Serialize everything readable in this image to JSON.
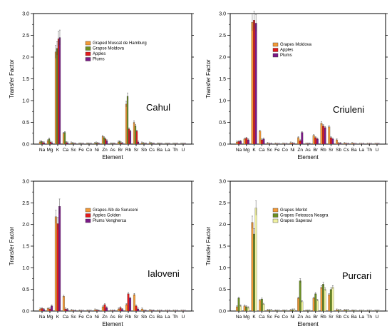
{
  "chart_data": [
    {
      "type": "bar",
      "panel_label": "Cahul",
      "xlabel": "Element",
      "ylabel": "Transfer Factor",
      "ylim": [
        0,
        3.0
      ],
      "yticks": [
        "0.0",
        "0.5",
        "1.0",
        "1.5",
        "2.0",
        "2.5",
        "3.0"
      ],
      "categories": [
        "Na",
        "Mg",
        "K",
        "Ca",
        "Sc",
        "Fe",
        "Co",
        "Ni",
        "Zn",
        "As",
        "Br",
        "Rb",
        "Sr",
        "Sb",
        "Cs",
        "Ba",
        "La",
        "Th",
        "U"
      ],
      "legend_position": "top-center",
      "series": [
        {
          "name": "Graped Muscat de Hamburg",
          "color": "#f39a38",
          "values": [
            0.05,
            0.08,
            2.12,
            0.25,
            0.03,
            0.01,
            0.01,
            0.02,
            0.18,
            0.01,
            0.05,
            0.92,
            0.5,
            0.03,
            0.03,
            0.01,
            0.005,
            0.005,
            0.005
          ]
        },
        {
          "name": "Grapse Moldova",
          "color": "#6b8e23",
          "values": [
            0.06,
            0.12,
            2.2,
            0.27,
            0.02,
            0.01,
            0.01,
            0.03,
            0.15,
            0.01,
            0.06,
            1.1,
            0.42,
            0.02,
            0.02,
            0.01,
            0.005,
            0.005,
            0.005
          ]
        },
        {
          "name": "Apples",
          "color": "#e31a1c",
          "values": [
            0.04,
            0.05,
            2.42,
            0.04,
            0.01,
            0.005,
            0.005,
            0.02,
            0.12,
            0.01,
            0.03,
            0.35,
            0.3,
            0.01,
            0.01,
            0.005,
            0.005,
            0.005,
            0.005
          ]
        },
        {
          "name": "Plums",
          "color": "#7a1a86",
          "values": [
            0.03,
            0.03,
            2.45,
            0.03,
            0.01,
            0.005,
            0.005,
            0.01,
            0.08,
            0.01,
            0.02,
            0.3,
            0.05,
            0.01,
            0.01,
            0.005,
            0.005,
            0.005,
            0.005
          ]
        }
      ]
    },
    {
      "type": "bar",
      "panel_label": "Criuleni",
      "xlabel": "Element",
      "ylabel": "Transfer Factor",
      "ylim": [
        0,
        3.0
      ],
      "yticks": [
        "0.0",
        "0.5",
        "1.0",
        "1.5",
        "2.0",
        "2.5",
        "3.0"
      ],
      "categories": [
        "Na",
        "Mg",
        "K",
        "Ca",
        "Sc",
        "Fe",
        "Co",
        "Ni",
        "Zn",
        "As",
        "Br",
        "Rb",
        "Sr",
        "Sb",
        "Cs",
        "Ba",
        "La",
        "Th",
        "U"
      ],
      "legend_position": "top-center",
      "series": [
        {
          "name": "Grapes Moldova",
          "color": "#f39a38",
          "values": [
            0.05,
            0.12,
            2.8,
            0.3,
            0.02,
            0.01,
            0.01,
            0.03,
            0.15,
            0.01,
            0.2,
            0.48,
            0.4,
            0.1,
            0.02,
            0.02,
            0.005,
            0.005,
            0.005
          ]
        },
        {
          "name": "Apples",
          "color": "#e31a1c",
          "values": [
            0.06,
            0.14,
            2.85,
            0.1,
            0.01,
            0.005,
            0.005,
            0.02,
            0.08,
            0.01,
            0.15,
            0.42,
            0.15,
            0.02,
            0.01,
            0.01,
            0.005,
            0.005,
            0.005
          ]
        },
        {
          "name": "Plums",
          "color": "#7a1a86",
          "values": [
            0.07,
            0.1,
            2.78,
            0.12,
            0.01,
            0.005,
            0.005,
            0.01,
            0.27,
            0.01,
            0.12,
            0.38,
            0.12,
            0.02,
            0.01,
            0.005,
            0.005,
            0.005,
            0.005
          ]
        }
      ]
    },
    {
      "type": "bar",
      "panel_label": "Ialoveni",
      "xlabel": "Element",
      "ylabel": "Transfer Factor",
      "ylim": [
        0,
        3.0
      ],
      "yticks": [
        "0.0",
        "0.5",
        "1.0",
        "1.5",
        "2.0",
        "2.5",
        "3.0"
      ],
      "categories": [
        "Na",
        "Mg",
        "K",
        "Ca",
        "Sc",
        "Fe",
        "Co",
        "Ni",
        "Zn",
        "As",
        "Br",
        "Rb",
        "Sr",
        "Sb",
        "Cs",
        "Ba",
        "La",
        "Th",
        "U"
      ],
      "legend_position": "top-center",
      "series": [
        {
          "name": "Grapes Alb de Suruceni",
          "color": "#f39a38",
          "values": [
            0.05,
            0.06,
            2.18,
            0.34,
            0.02,
            0.01,
            0.01,
            0.03,
            0.1,
            0.01,
            0.05,
            0.15,
            0.38,
            0.05,
            0.02,
            0.01,
            0.005,
            0.005,
            0.005
          ]
        },
        {
          "name": "Apples Golden",
          "color": "#e31a1c",
          "values": [
            0.06,
            0.05,
            2.02,
            0.05,
            0.01,
            0.005,
            0.005,
            0.02,
            0.15,
            0.01,
            0.08,
            0.4,
            0.12,
            0.01,
            0.01,
            0.005,
            0.005,
            0.005,
            0.005
          ]
        },
        {
          "name": "Plums Vengherca",
          "color": "#7a1a86",
          "values": [
            0.04,
            0.12,
            2.42,
            0.04,
            0.01,
            0.005,
            0.005,
            0.01,
            0.08,
            0.01,
            0.04,
            0.3,
            0.05,
            0.01,
            0.01,
            0.005,
            0.005,
            0.005,
            0.005
          ]
        }
      ]
    },
    {
      "type": "bar",
      "panel_label": "Purcari",
      "xlabel": "Element",
      "ylabel": "Transfer Factor",
      "ylim": [
        0,
        3.0
      ],
      "yticks": [
        "0.0",
        "0.5",
        "1.0",
        "1.5",
        "2.0",
        "2.5",
        "3.0"
      ],
      "categories": [
        "Na",
        "Mg",
        "K",
        "Ca",
        "Sc",
        "Fe",
        "Co",
        "Ni",
        "Zn",
        "As",
        "Br",
        "Rb",
        "Sr",
        "Sb",
        "Cs",
        "Ba",
        "La",
        "Th",
        "U"
      ],
      "legend_position": "top-center",
      "series": [
        {
          "name": "Grapes Merlot",
          "color": "#f39a38",
          "values": [
            0.1,
            0.12,
            2.05,
            0.25,
            0.02,
            0.01,
            0.01,
            0.02,
            0.3,
            0.01,
            0.3,
            0.55,
            0.38,
            0.03,
            0.02,
            0.01,
            0.005,
            0.005,
            0.005
          ]
        },
        {
          "name": "Grapes Feteasca Neagra",
          "color": "#6b8e23",
          "values": [
            0.3,
            0.1,
            1.78,
            0.28,
            0.02,
            0.01,
            0.01,
            0.03,
            0.7,
            0.01,
            0.4,
            0.62,
            0.5,
            0.02,
            0.02,
            0.01,
            0.005,
            0.005,
            0.005
          ]
        },
        {
          "name": "Grapes Saperavi",
          "color": "#eff0a0",
          "values": [
            0.12,
            0.08,
            2.38,
            0.16,
            0.02,
            0.01,
            0.01,
            0.03,
            0.22,
            0.01,
            0.25,
            0.5,
            0.55,
            0.02,
            0.02,
            0.01,
            0.005,
            0.005,
            0.005
          ]
        }
      ]
    }
  ]
}
